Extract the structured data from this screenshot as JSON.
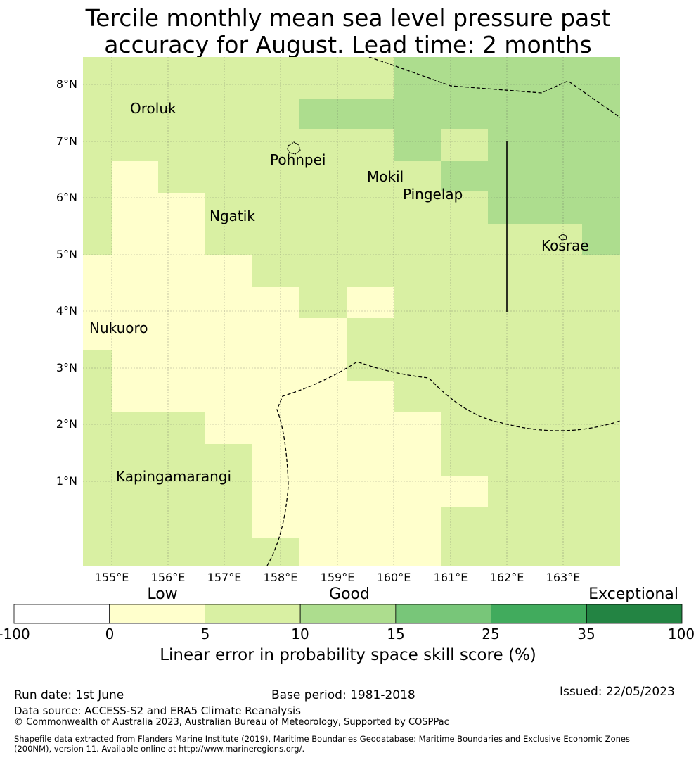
{
  "title": {
    "line1": "Tercile monthly mean sea level pressure past",
    "line2": "accuracy for August. Lead time: 2 months"
  },
  "map": {
    "lat_labels": [
      "8°N",
      "7°N",
      "6°N",
      "5°N",
      "4°N",
      "3°N",
      "2°N",
      "1°N"
    ],
    "lon_labels": [
      "155°E",
      "156°E",
      "157°E",
      "158°E",
      "159°E",
      "160°E",
      "161°E",
      "162°E",
      "163°E"
    ],
    "places": {
      "oroluk": "Oroluk",
      "pohnpei": "Pohnpei",
      "mokil": "Mokil",
      "pingelap": "Pingelap",
      "ngatik": "Ngatik",
      "kosrae": "Kosrae",
      "nukuoro": "Nukuoro",
      "kapingamarangi": "Kapingamarangi"
    },
    "category_colors": {
      "cat_0_5": "#ffffcc",
      "cat_5_10": "#d9f0a3",
      "cat_10_15": "#addd8e"
    }
  },
  "colorbar": {
    "categories": {
      "low": "Low",
      "good": "Good",
      "exceptional": "Exceptional"
    },
    "ticks": [
      "-100",
      "0",
      "5",
      "10",
      "15",
      "25",
      "35",
      "100"
    ],
    "colors": [
      "#ffffff",
      "#ffffcc",
      "#d9f0a3",
      "#addd8e",
      "#78c679",
      "#41ab5d",
      "#238443"
    ],
    "label": "Linear error in probability space skill score (%)"
  },
  "footer": {
    "run_date": "Run date: 1st June",
    "base_period": "Base period: 1981-2018",
    "issued": "Issued: 22/05/2023",
    "data_source": "Data source: ACCESS-S2 and ERA5 Climate Reanalysis",
    "copyright": "© Commonwealth of Australia 2023, Australian Bureau of Meteorology, Supported by COSPPac",
    "shapefile_line1": "Shapefile data extracted from Flanders Marine Institute (2019), Maritime Boundaries Geodatabase: Maritime Boundaries and Exclusive Economic Zones",
    "shapefile_line2": "(200NM), version 11. Available online at http://www.marineregions.org/."
  }
}
